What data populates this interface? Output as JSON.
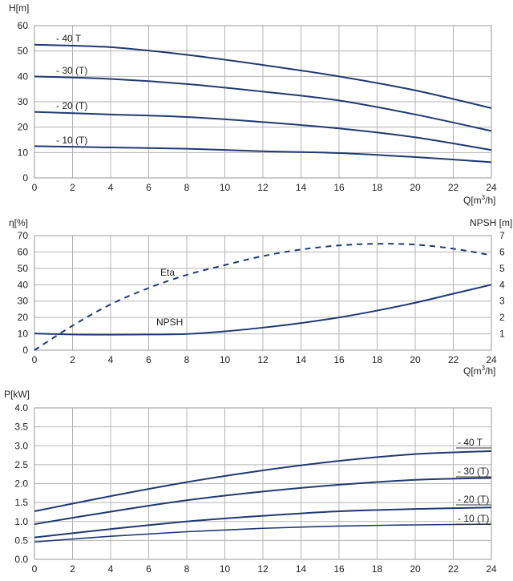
{
  "chart_data": [
    {
      "type": "line",
      "xlabel": "Q[m³/h]",
      "ylabel": "H[m]",
      "xlim": [
        0,
        24
      ],
      "ylim": [
        0,
        60
      ],
      "xticks": [
        0,
        2,
        4,
        6,
        8,
        10,
        12,
        14,
        16,
        18,
        20,
        22,
        24
      ],
      "yticks": [
        0,
        10,
        20,
        30,
        40,
        50,
        60
      ],
      "grid": true,
      "x": [
        0,
        4,
        8,
        12,
        16,
        20,
        24
      ],
      "series": [
        {
          "name": "- 40 T",
          "values": [
            52.5,
            51.5,
            48.5,
            44.5,
            40,
            34.5,
            27.5
          ]
        },
        {
          "name": "- 30 (T)",
          "values": [
            40,
            39,
            37,
            34,
            30.5,
            25,
            18.5
          ]
        },
        {
          "name": "- 20 (T)",
          "values": [
            26,
            25,
            24,
            22,
            19.5,
            16,
            11
          ]
        },
        {
          "name": "- 10 (T)",
          "values": [
            12.5,
            12,
            11.5,
            10.5,
            9.8,
            8.2,
            6.2
          ]
        }
      ]
    },
    {
      "type": "line",
      "xlabel": "Q[m³/h]",
      "ylabel": "η[%]",
      "y2label": "NPSH [m]",
      "xlim": [
        0,
        24
      ],
      "ylim": [
        0,
        70
      ],
      "y2lim": [
        0,
        7
      ],
      "xticks": [
        0,
        2,
        4,
        6,
        8,
        10,
        12,
        14,
        16,
        18,
        20,
        22,
        24
      ],
      "yticks": [
        0,
        10,
        20,
        30,
        40,
        50,
        60,
        70
      ],
      "y2ticks": [
        1,
        2,
        3,
        4,
        5,
        6,
        7
      ],
      "grid": true,
      "x": [
        0,
        2,
        4,
        6,
        8,
        10,
        12,
        14,
        16,
        18,
        20,
        22,
        24
      ],
      "series": [
        {
          "name": "Eta",
          "axis": "left",
          "style": "dashed",
          "values": [
            0,
            15,
            28,
            38,
            46,
            52,
            57.5,
            61.5,
            64,
            65,
            64.5,
            62,
            58
          ]
        },
        {
          "name": "NPSH",
          "axis": "right",
          "style": "solid",
          "values": [
            1.02,
            0.96,
            0.95,
            0.96,
            0.99,
            1.15,
            1.38,
            1.66,
            2.0,
            2.42,
            2.9,
            3.45,
            4.0
          ]
        }
      ]
    },
    {
      "type": "line",
      "xlabel": "",
      "ylabel": "P[kW]",
      "xlim": [
        0,
        24
      ],
      "ylim": [
        0,
        4.0
      ],
      "xticks": [
        0,
        2,
        4,
        6,
        8,
        10,
        12,
        14,
        16,
        18,
        20,
        22,
        24
      ],
      "yticks": [
        "0.0",
        "0.5",
        "1.0",
        "1.5",
        "2.0",
        "2.5",
        "3.0",
        "3.5",
        "4.0"
      ],
      "grid": true,
      "x": [
        0,
        4,
        8,
        12,
        16,
        20,
        24
      ],
      "series": [
        {
          "name": "- 40 T",
          "values": [
            1.27,
            1.67,
            2.04,
            2.35,
            2.6,
            2.78,
            2.86
          ]
        },
        {
          "name": "- 30 (T)",
          "values": [
            0.93,
            1.26,
            1.56,
            1.79,
            1.97,
            2.1,
            2.15
          ]
        },
        {
          "name": "- 20 (T)",
          "values": [
            0.58,
            0.8,
            1.0,
            1.15,
            1.27,
            1.33,
            1.37
          ]
        },
        {
          "name": "- 10 (T)",
          "values": [
            0.46,
            0.61,
            0.73,
            0.82,
            0.88,
            0.91,
            0.93
          ]
        }
      ]
    }
  ]
}
